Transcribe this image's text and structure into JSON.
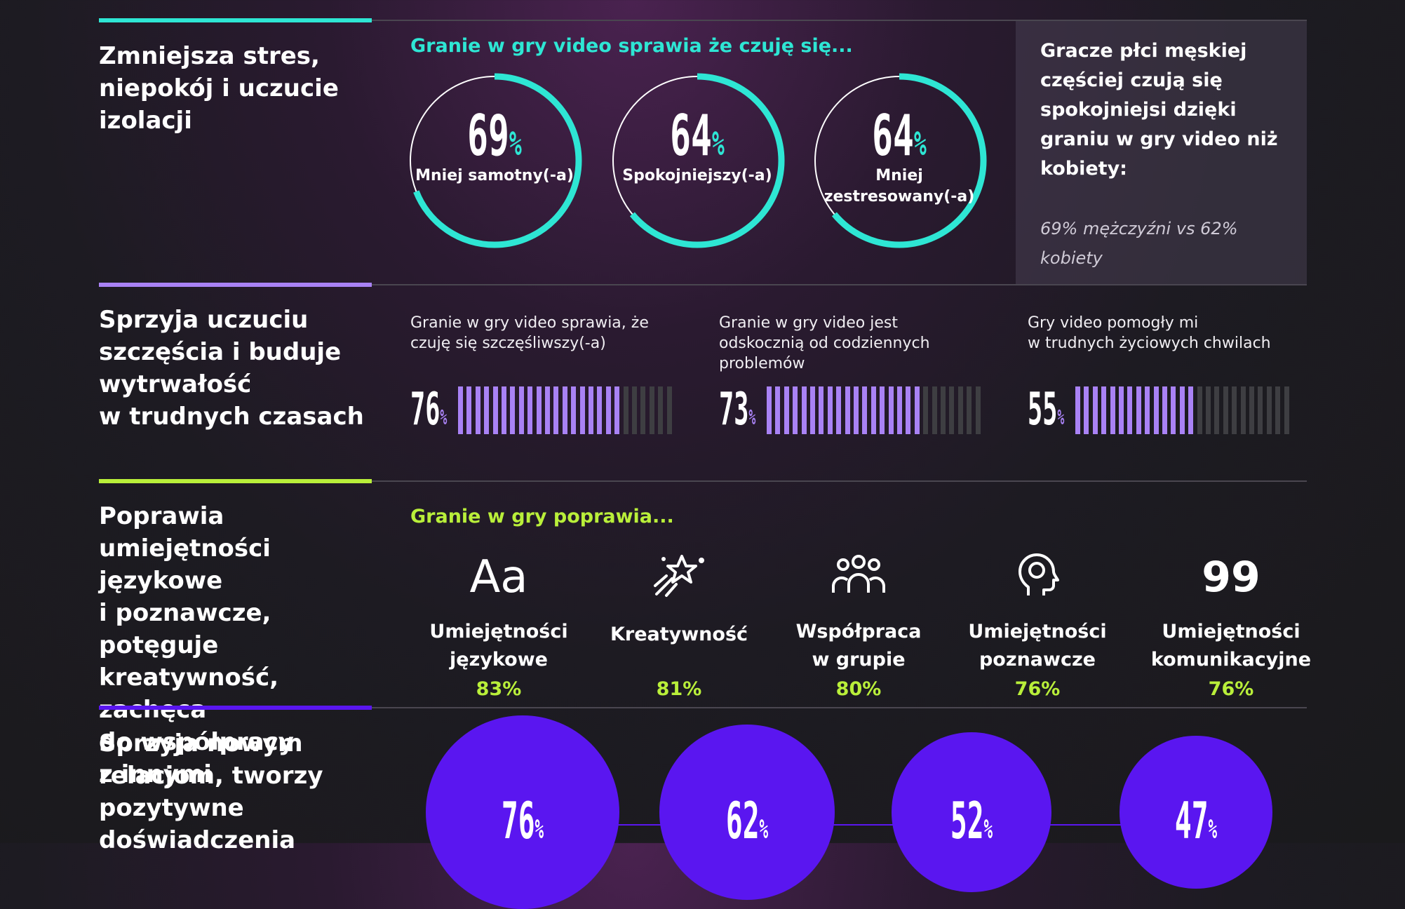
{
  "colors": {
    "teal": "#2ee6d4",
    "purple": "#a982f5",
    "lime": "#b9ef3a",
    "violet": "#5a16f0",
    "bar_off": "#3e3e42"
  },
  "section1": {
    "title_lines": [
      "Zmniejsza stres,",
      "niepokój i uczucie",
      "izolacji"
    ],
    "subtitle": "Granie w gry video sprawia że czuję się...",
    "rings": [
      {
        "value": 69,
        "pct": "%",
        "label_lines": [
          "Mniej samotny(-a)"
        ]
      },
      {
        "value": 64,
        "pct": "%",
        "label_lines": [
          "Spokojniejszy(-a)"
        ]
      },
      {
        "value": 64,
        "pct": "%",
        "label_lines": [
          "Mniej",
          "zestresowany(-a)"
        ]
      }
    ],
    "callout_lines": [
      "Gracze płci męskiej",
      "częściej czują się",
      "spokojniejsi dzięki",
      "graniu w gry video niż",
      "kobiety:"
    ],
    "callout_note_lines": [
      "69% mężczyźni vs 62%",
      "kobiety"
    ]
  },
  "section2": {
    "title_lines": [
      "Sprzyja uczuciu",
      "szczęścia i buduje",
      "wytrwałość",
      "w trudnych czasach"
    ],
    "bars": [
      {
        "caption_lines": [
          "Granie w gry video sprawia, że",
          "czuję się szczęśliwszy(-a)"
        ],
        "value": 76,
        "pct": "%"
      },
      {
        "caption_lines": [
          "Granie w gry video jest",
          "odskocznią od codziennych",
          "problemów"
        ],
        "value": 73,
        "pct": "%"
      },
      {
        "caption_lines": [
          "Gry video pomogły mi",
          "w trudnych życiowych chwilach"
        ],
        "value": 55,
        "pct": "%"
      }
    ]
  },
  "section3": {
    "title_lines": [
      "Poprawia",
      "umiejętności językowe",
      "i poznawcze, potęguje",
      "kreatywność, zachęca",
      "do współpracy",
      "z innymi"
    ],
    "subtitle": "Granie w gry poprawia...",
    "skills": [
      {
        "icon": "letters-aa-icon",
        "glyph": "Aa",
        "label_lines": [
          "Umiejętności",
          "językowe"
        ],
        "pct": "83%"
      },
      {
        "icon": "magic-wand-icon",
        "glyph": "",
        "label_lines": [
          "Kreatywność"
        ],
        "pct": "81%"
      },
      {
        "icon": "group-icon",
        "glyph": "",
        "label_lines": [
          "Współpraca",
          "w grupie"
        ],
        "pct": "80%"
      },
      {
        "icon": "brain-head-icon",
        "glyph": "",
        "label_lines": [
          "Umiejętności",
          "poznawcze"
        ],
        "pct": "76%"
      },
      {
        "icon": "quote-icon",
        "glyph": "99",
        "label_lines": [
          "Umiejętności",
          "komunikacyjne"
        ],
        "pct": "76%"
      }
    ]
  },
  "section4": {
    "title_lines": [
      "Sprzyja nowym",
      "relacjom, tworzy",
      "pozytywne",
      "doświadczenia"
    ],
    "bubbles": [
      {
        "value": 76,
        "pct": "%"
      },
      {
        "value": 62,
        "pct": "%"
      },
      {
        "value": 52,
        "pct": "%"
      },
      {
        "value": 47,
        "pct": "%"
      }
    ]
  },
  "chart_data": [
    {
      "type": "pie",
      "title": "Granie w gry video sprawia że czuję się...",
      "categories": [
        "Mniej samotny(-a)",
        "Spokojniejszy(-a)",
        "Mniej zestresowany(-a)"
      ],
      "values": [
        69,
        64,
        64
      ]
    },
    {
      "type": "bar",
      "title": "",
      "categories": [
        "Granie w gry video sprawia, że czuję się szczęśliwszy(-a)",
        "Granie w gry video jest odskocznią od codziennych problemów",
        "Gry video pomogły mi w trudnych życiowych chwilach"
      ],
      "values": [
        76,
        73,
        55
      ],
      "ylim": [
        0,
        100
      ]
    },
    {
      "type": "table",
      "title": "Granie w gry poprawia...",
      "categories": [
        "Umiejętności językowe",
        "Kreatywność",
        "Współpraca w grupie",
        "Umiejętności poznawcze",
        "Umiejętności komunikacyjne"
      ],
      "values": [
        83,
        81,
        80,
        76,
        76
      ]
    },
    {
      "type": "scatter",
      "title": "",
      "categories": [
        "",
        "",
        "",
        ""
      ],
      "values": [
        76,
        62,
        52,
        47
      ]
    }
  ]
}
